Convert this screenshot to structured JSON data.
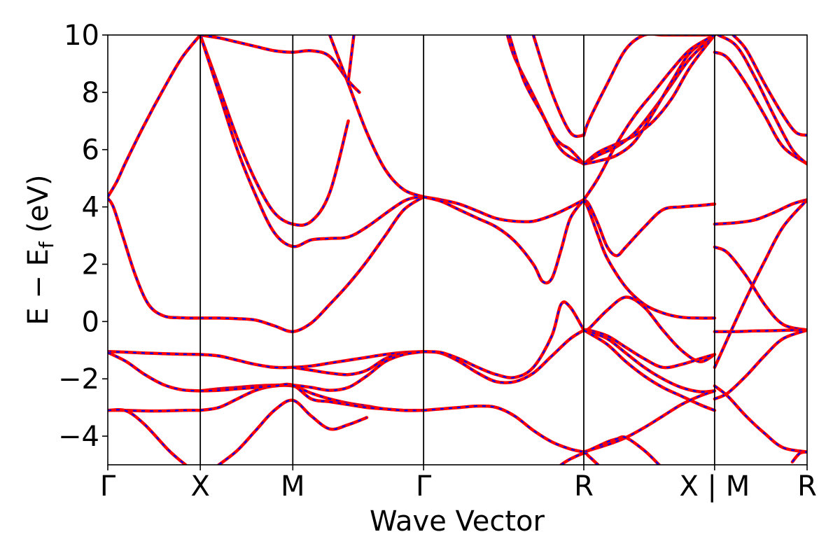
{
  "chart_data": {
    "type": "line",
    "title": "",
    "xlabel": "Wave Vector",
    "ylabel_main": "E − E",
    "ylabel_sub": "f",
    "ylabel_unit": " (eV)",
    "ylim": [
      -5,
      10
    ],
    "y_ticks": [
      -4,
      -2,
      0,
      2,
      4,
      6,
      8,
      10
    ],
    "y_tick_labels": [
      "−4",
      "−2",
      "0",
      "2",
      "4",
      "6",
      "8",
      "10"
    ],
    "x_ticks": [
      {
        "label": "Γ",
        "x": 0.0
      },
      {
        "label": "X",
        "x": 0.5
      },
      {
        "label": "M",
        "x": 1.0
      },
      {
        "label": "Γ",
        "x": 1.707
      },
      {
        "label": "R",
        "x": 2.573
      },
      {
        "label": "X | M",
        "x": 3.28
      },
      {
        "label": "R",
        "x": 3.78
      }
    ],
    "xlim": [
      0,
      3.78
    ],
    "grid": false,
    "legend": "none",
    "colors": {
      "solid": "#ff0000",
      "dashed": "#0000ff",
      "axes": "#000000"
    },
    "series": [
      {
        "x": [
          0,
          0.05,
          0.1,
          0.2,
          0.3,
          0.4,
          0.5
        ],
        "y": [
          4.35,
          4.9,
          5.6,
          6.9,
          8.1,
          9.2,
          10.0
        ]
      },
      {
        "x": [
          0,
          0.03,
          0.08,
          0.15,
          0.22,
          0.3,
          0.4,
          0.5
        ],
        "y": [
          4.3,
          4.0,
          3.0,
          1.6,
          0.6,
          0.2,
          0.13,
          0.12
        ]
      },
      {
        "x": [
          0,
          0.1,
          0.2,
          0.3,
          0.4,
          0.5
        ],
        "y": [
          -1.05,
          -1.07,
          -1.1,
          -1.12,
          -1.14,
          -1.15
        ]
      },
      {
        "x": [
          0,
          0.1,
          0.2,
          0.3,
          0.4,
          0.5
        ],
        "y": [
          -1.08,
          -1.4,
          -1.85,
          -2.2,
          -2.38,
          -2.42
        ]
      },
      {
        "x": [
          0,
          0.1,
          0.2,
          0.3,
          0.4,
          0.5
        ],
        "y": [
          -3.1,
          -3.1,
          -3.12,
          -3.12,
          -3.1,
          -3.1
        ]
      },
      {
        "x": [
          0.0,
          0.1,
          0.2,
          0.33,
          0.42
        ],
        "y": [
          -3.1,
          -3.12,
          -3.6,
          -4.5,
          -5.0
        ]
      },
      {
        "x": [
          0.5,
          0.6,
          0.7,
          0.8,
          0.9,
          1.0,
          1.1,
          1.2,
          1.3
        ],
        "y": [
          10.0,
          8.2,
          6.4,
          4.9,
          3.8,
          3.4,
          3.5,
          4.5,
          7.0
        ]
      },
      {
        "x": [
          0.5,
          0.6,
          0.7,
          0.8,
          0.9,
          1.0,
          1.1,
          1.2,
          1.3,
          1.4,
          1.6,
          1.707
        ],
        "y": [
          10.0,
          8.0,
          6.0,
          4.4,
          3.1,
          2.62,
          2.85,
          2.9,
          2.95,
          3.3,
          4.2,
          4.35
        ]
      },
      {
        "x": [
          0.5,
          0.6,
          0.7,
          0.8,
          0.9,
          1.0,
          1.1,
          1.2,
          1.3,
          1.4,
          1.5,
          1.6,
          1.707
        ],
        "y": [
          0.12,
          0.12,
          0.1,
          0.05,
          -0.15,
          -0.35,
          -0.05,
          0.6,
          1.3,
          2.1,
          3.0,
          3.9,
          4.35
        ]
      },
      {
        "x": [
          0.5,
          0.6,
          0.7,
          0.8,
          0.9,
          1.0,
          1.1,
          1.2,
          1.3,
          1.4,
          1.5,
          1.6,
          1.707
        ],
        "y": [
          -1.15,
          -1.2,
          -1.35,
          -1.5,
          -1.6,
          -1.6,
          -1.55,
          -1.45,
          -1.35,
          -1.25,
          -1.15,
          -1.08,
          -1.05
        ]
      },
      {
        "x": [
          1.0,
          1.1,
          1.2,
          1.3,
          1.4,
          1.5,
          1.6,
          1.707
        ],
        "y": [
          -1.6,
          -1.7,
          -1.8,
          -1.85,
          -1.7,
          -1.3,
          -1.1,
          -1.05
        ]
      },
      {
        "x": [
          0.5,
          0.6,
          0.7,
          0.8,
          0.9,
          1.0,
          1.1,
          1.2,
          1.3,
          1.4,
          1.5,
          1.6,
          1.707
        ],
        "y": [
          -2.42,
          -2.35,
          -2.3,
          -2.25,
          -2.22,
          -2.22,
          -2.3,
          -2.4,
          -2.3,
          -1.9,
          -1.4,
          -1.15,
          -1.05
        ]
      },
      {
        "x": [
          0.5,
          0.6,
          0.7,
          0.8,
          0.9,
          1.0,
          1.1,
          1.2,
          1.3,
          1.4,
          1.5,
          1.6,
          1.707
        ],
        "y": [
          -3.1,
          -3.0,
          -2.7,
          -2.4,
          -2.25,
          -2.25,
          -2.5,
          -2.7,
          -2.85,
          -2.95,
          -3.05,
          -3.1,
          -3.1
        ]
      },
      {
        "x": [
          0.6,
          0.7,
          0.8,
          0.9,
          1.0,
          1.1,
          1.2,
          1.3,
          1.4
        ],
        "y": [
          -5.0,
          -4.5,
          -3.8,
          -3.1,
          -2.75,
          -3.3,
          -3.75,
          -3.6,
          -3.35
        ]
      },
      {
        "x": [
          0.5,
          0.6,
          0.7,
          0.8,
          0.9,
          1.0,
          1.1,
          1.2,
          1.3,
          1.4,
          1.5,
          1.6,
          1.707
        ],
        "y": [
          -2.42,
          -2.4,
          -2.35,
          -2.3,
          -2.25,
          -2.22,
          -2.7,
          -2.8,
          -2.9,
          -3.0,
          -3.05,
          -3.1,
          -3.1
        ]
      },
      {
        "x": [
          0.5,
          0.6,
          0.7,
          0.8,
          0.9,
          1.0,
          1.1,
          1.2,
          1.3,
          1.36
        ],
        "y": [
          10.0,
          9.9,
          9.75,
          9.6,
          9.45,
          9.4,
          9.45,
          9.25,
          8.4,
          8.0
        ]
      },
      {
        "x": [
          1.2,
          1.3,
          1.4,
          1.5,
          1.6,
          1.707
        ],
        "y": [
          10.0,
          8.3,
          6.6,
          5.3,
          4.6,
          4.35
        ]
      },
      {
        "x": [
          1.3,
          1.33
        ],
        "y": [
          8.4,
          10.0
        ]
      },
      {
        "x": [
          1.707,
          1.8,
          1.9,
          2.0,
          2.1,
          2.2,
          2.3,
          2.4,
          2.5,
          2.573
        ],
        "y": [
          4.35,
          4.25,
          4.1,
          3.85,
          3.6,
          3.5,
          3.5,
          3.7,
          4.0,
          4.25
        ]
      },
      {
        "x": [
          1.707,
          1.8,
          1.9,
          2.0,
          2.1,
          2.2,
          2.3,
          2.35,
          2.4,
          2.45,
          2.5,
          2.573
        ],
        "y": [
          4.35,
          4.2,
          3.9,
          3.6,
          3.3,
          2.8,
          2.0,
          1.4,
          1.5,
          2.5,
          3.6,
          4.25
        ]
      },
      {
        "x": [
          1.707,
          1.8,
          1.9,
          2.0,
          2.1,
          2.2,
          2.3,
          2.4,
          2.5,
          2.573
        ],
        "y": [
          -1.05,
          -1.1,
          -1.4,
          -1.8,
          -2.1,
          -2.1,
          -1.8,
          -1.2,
          -0.6,
          -0.3
        ]
      },
      {
        "x": [
          1.707,
          1.8,
          1.9,
          2.0,
          2.1,
          2.2,
          2.3,
          2.4,
          2.45,
          2.5,
          2.573
        ],
        "y": [
          -1.05,
          -1.08,
          -1.3,
          -1.6,
          -1.85,
          -1.95,
          -1.6,
          -0.5,
          0.6,
          0.5,
          -0.3
        ]
      },
      {
        "x": [
          1.707,
          1.8,
          1.9,
          2.0,
          2.1,
          2.2,
          2.3,
          2.4,
          2.5,
          2.573
        ],
        "y": [
          -3.1,
          -3.05,
          -3.0,
          -2.95,
          -3.0,
          -3.3,
          -3.8,
          -4.2,
          -4.45,
          -4.55
        ]
      },
      {
        "x": [
          2.16,
          2.2,
          2.3,
          2.4,
          2.45,
          2.5,
          2.573
        ],
        "y": [
          10.0,
          9.2,
          7.9,
          6.6,
          6.2,
          6.0,
          5.5
        ]
      },
      {
        "x": [
          2.3,
          2.4,
          2.5,
          2.573
        ],
        "y": [
          10.0,
          8.0,
          6.6,
          6.5
        ]
      },
      {
        "x": [
          2.17,
          2.25,
          2.35,
          2.45,
          2.573
        ],
        "y": [
          10.0,
          8.4,
          7.2,
          6.0,
          5.5
        ]
      },
      {
        "x": [
          2.573,
          2.6,
          2.7,
          2.8,
          2.9,
          3.0,
          3.1,
          3.2,
          3.28
        ],
        "y": [
          6.5,
          7.0,
          8.3,
          9.5,
          10.0,
          10.0,
          10.0,
          10.0,
          10.0
        ]
      },
      {
        "x": [
          2.573,
          2.65,
          2.75,
          2.85,
          2.95,
          3.05,
          3.15,
          3.28
        ],
        "y": [
          5.5,
          5.9,
          6.2,
          6.5,
          7.0,
          7.8,
          8.9,
          10.0
        ]
      },
      {
        "x": [
          2.573,
          2.65,
          2.75,
          2.85,
          2.95,
          3.05,
          3.15,
          3.28
        ],
        "y": [
          5.5,
          5.8,
          6.1,
          6.6,
          7.4,
          8.3,
          9.2,
          10.0
        ]
      },
      {
        "x": [
          2.573,
          2.65,
          2.75,
          2.85,
          2.95,
          3.05,
          3.15,
          3.28
        ],
        "y": [
          5.5,
          5.6,
          5.8,
          6.3,
          7.3,
          8.4,
          9.4,
          10.0
        ]
      },
      {
        "x": [
          2.573,
          2.65,
          2.75,
          2.85,
          2.95,
          3.05,
          3.15,
          3.28
        ],
        "y": [
          4.25,
          5.0,
          6.2,
          7.2,
          8.0,
          8.8,
          9.5,
          10.0
        ]
      },
      {
        "x": [
          2.573,
          2.6,
          2.65,
          2.7,
          2.75,
          2.8,
          2.9,
          3.0,
          3.1,
          3.2,
          3.28
        ],
        "y": [
          4.25,
          4.1,
          3.4,
          2.6,
          2.3,
          2.6,
          3.3,
          3.9,
          4.0,
          4.05,
          4.1
        ]
      },
      {
        "x": [
          2.573,
          2.6,
          2.65,
          2.7,
          2.8,
          2.9,
          3.0,
          3.1,
          3.2,
          3.28
        ],
        "y": [
          4.25,
          3.9,
          3.0,
          2.2,
          1.2,
          0.6,
          0.3,
          0.15,
          0.12,
          0.12
        ]
      },
      {
        "x": [
          2.573,
          2.6,
          2.7,
          2.8,
          2.9,
          3.0,
          3.1,
          3.2,
          3.28
        ],
        "y": [
          -0.3,
          -0.25,
          0.4,
          0.85,
          0.5,
          -0.3,
          -1.0,
          -1.4,
          -1.15
        ]
      },
      {
        "x": [
          2.573,
          2.6,
          2.7,
          2.8,
          2.9,
          3.0,
          3.1,
          3.2,
          3.28
        ],
        "y": [
          -0.3,
          -0.3,
          -0.5,
          -0.9,
          -1.3,
          -1.6,
          -1.5,
          -1.3,
          -1.15
        ]
      },
      {
        "x": [
          2.573,
          2.6,
          2.7,
          2.8,
          2.9,
          3.0,
          3.1,
          3.2,
          3.28
        ],
        "y": [
          -0.3,
          -0.35,
          -0.6,
          -1.1,
          -1.6,
          -2.0,
          -2.3,
          -2.45,
          -2.42
        ]
      },
      {
        "x": [
          2.573,
          2.6,
          2.7,
          2.8,
          2.9,
          3.0,
          3.1,
          3.2,
          3.28
        ],
        "y": [
          -0.3,
          -0.4,
          -0.8,
          -1.4,
          -1.9,
          -2.3,
          -2.6,
          -2.9,
          -3.1
        ]
      },
      {
        "x": [
          2.573,
          2.6,
          2.7,
          2.8,
          2.9,
          3.0,
          3.1,
          3.2,
          3.28
        ],
        "y": [
          -4.55,
          -4.5,
          -4.3,
          -4.05,
          -3.7,
          -3.3,
          -2.9,
          -2.6,
          -2.42
        ]
      },
      {
        "x": [
          2.573,
          2.6,
          2.7,
          2.75,
          2.8,
          2.9,
          2.98
        ],
        "y": [
          -4.55,
          -4.5,
          -4.2,
          -4.1,
          -4.05,
          -4.5,
          -5.0
        ]
      },
      {
        "x": [
          2.45,
          2.5,
          2.573,
          2.6,
          2.65
        ],
        "y": [
          -5.0,
          -4.8,
          -4.6,
          -4.7,
          -5.0
        ]
      },
      {
        "x": [
          3.28,
          3.35,
          3.45,
          3.55,
          3.65,
          3.78
        ],
        "y": [
          9.4,
          9.2,
          8.3,
          7.2,
          6.1,
          5.5
        ]
      },
      {
        "x": [
          3.38,
          3.45,
          3.55,
          3.65,
          3.72,
          3.78
        ],
        "y": [
          10.0,
          9.5,
          8.3,
          7.2,
          6.6,
          6.5
        ]
      },
      {
        "x": [
          3.3,
          3.4,
          3.5,
          3.6,
          3.7,
          3.78
        ],
        "y": [
          10.0,
          9.6,
          8.5,
          7.2,
          6.0,
          5.5
        ]
      },
      {
        "x": [
          3.28,
          3.4,
          3.5,
          3.6,
          3.7,
          3.78
        ],
        "y": [
          3.4,
          3.45,
          3.55,
          3.8,
          4.1,
          4.25
        ]
      },
      {
        "x": [
          3.28,
          3.35,
          3.45,
          3.55,
          3.65,
          3.78
        ],
        "y": [
          2.6,
          2.4,
          1.6,
          0.6,
          -0.1,
          -0.3
        ]
      },
      {
        "x": [
          3.28,
          3.35,
          3.45,
          3.55,
          3.65,
          3.78
        ],
        "y": [
          -1.6,
          -0.6,
          0.8,
          2.1,
          3.3,
          4.25
        ]
      },
      {
        "x": [
          3.28,
          3.4,
          3.5,
          3.6,
          3.7,
          3.78
        ],
        "y": [
          -0.35,
          -0.35,
          -0.33,
          -0.32,
          -0.3,
          -0.3
        ]
      },
      {
        "x": [
          3.28,
          3.35,
          3.45,
          3.55,
          3.65,
          3.78
        ],
        "y": [
          -2.7,
          -2.5,
          -1.9,
          -1.2,
          -0.6,
          -0.3
        ]
      },
      {
        "x": [
          3.28,
          3.35,
          3.45,
          3.55,
          3.65,
          3.78
        ],
        "y": [
          -2.25,
          -2.6,
          -3.3,
          -3.9,
          -4.4,
          -4.55
        ]
      },
      {
        "x": [
          3.7,
          3.74,
          3.78
        ],
        "y": [
          -4.9,
          -4.6,
          -4.55
        ]
      }
    ]
  }
}
